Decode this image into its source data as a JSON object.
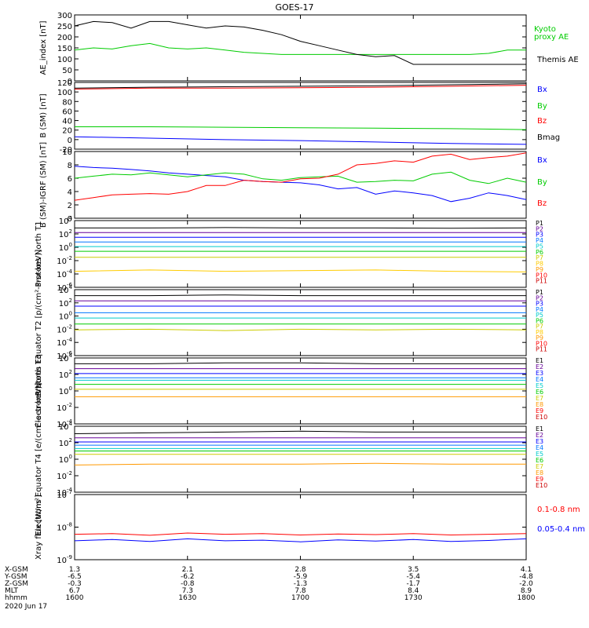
{
  "title": "GOES-17",
  "date_label": "2020 Jun 17",
  "orbit_rows": [
    {
      "label": "X-GSM",
      "values": [
        "1.3",
        "2.1",
        "2.8",
        "3.5",
        "4.1"
      ]
    },
    {
      "label": "Y-GSM",
      "values": [
        "-6.5",
        "-6.2",
        "-5.9",
        "-5.4",
        "-4.8"
      ]
    },
    {
      "label": "Z-GSM",
      "values": [
        "-0.3",
        "-0.8",
        "-1.3",
        "-1.7",
        "-2.0"
      ]
    },
    {
      "label": "MLT",
      "values": [
        "6.7",
        "7.3",
        "7.8",
        "8.4",
        "8.9"
      ]
    },
    {
      "label": "hhmm",
      "values": [
        "1600",
        "1630",
        "1700",
        "1730",
        "1800"
      ]
    }
  ],
  "chart_data": [
    {
      "type": "line",
      "ylabel": "AE_index [nT]",
      "ylim": [
        0,
        300
      ],
      "yscale": "linear",
      "tick_labels": [
        "0",
        "50",
        "100",
        "150",
        "200",
        "250",
        "300"
      ],
      "x": [
        0,
        5,
        10,
        15,
        20,
        25,
        30,
        35,
        40,
        45,
        50,
        55,
        60,
        65,
        70,
        75,
        80,
        85,
        90,
        95,
        100,
        105,
        110,
        115,
        120
      ],
      "series": [
        {
          "name": "Kyoto proxy AE",
          "color": "#00cc00",
          "values": [
            140,
            150,
            145,
            160,
            170,
            150,
            145,
            150,
            140,
            130,
            125,
            120,
            120,
            120,
            120,
            120,
            120,
            120,
            120,
            120,
            120,
            120,
            125,
            140,
            140
          ]
        },
        {
          "name": "Themis AE",
          "color": "#000000",
          "values": [
            250,
            270,
            265,
            240,
            270,
            270,
            255,
            240,
            250,
            245,
            230,
            210,
            180,
            160,
            140,
            120,
            110,
            115,
            75,
            75,
            75,
            75,
            75,
            75,
            75
          ]
        }
      ]
    },
    {
      "type": "line",
      "ylabel": "B (SM) [nT]",
      "ylim": [
        -20,
        120
      ],
      "yscale": "linear",
      "tick_labels": [
        "-20",
        "0",
        "20",
        "40",
        "60",
        "80",
        "100",
        "120"
      ],
      "x": [
        0,
        20,
        40,
        60,
        80,
        100,
        120
      ],
      "series": [
        {
          "name": "Bx",
          "color": "#0000ff",
          "values": [
            6,
            3,
            0,
            -2,
            -5,
            -8,
            -10
          ]
        },
        {
          "name": "By",
          "color": "#00cc00",
          "values": [
            27,
            27,
            26,
            25,
            24,
            23,
            21
          ]
        },
        {
          "name": "Bz",
          "color": "#ff0000",
          "values": [
            106,
            108,
            108,
            109,
            110,
            112,
            114
          ]
        },
        {
          "name": "Bmag",
          "color": "#000000",
          "values": [
            108,
            110,
            111,
            112,
            113,
            115,
            117
          ]
        }
      ]
    },
    {
      "type": "line",
      "ylabel": "B (SM)-IGRF (SM) [nT]",
      "ylim": [
        0,
        10
      ],
      "yscale": "linear",
      "tick_labels": [
        "0",
        "2",
        "4",
        "6",
        "8",
        "10"
      ],
      "x": [
        0,
        5,
        10,
        15,
        20,
        25,
        30,
        35,
        40,
        45,
        50,
        55,
        60,
        65,
        70,
        75,
        80,
        85,
        90,
        95,
        100,
        105,
        110,
        115,
        120
      ],
      "series": [
        {
          "name": "Bx",
          "color": "#0000ff",
          "values": [
            7.8,
            7.6,
            7.5,
            7.3,
            7.1,
            6.8,
            6.6,
            6.4,
            6.2,
            5.7,
            5.5,
            5.4,
            5.3,
            5.0,
            4.4,
            4.6,
            3.6,
            4.1,
            3.8,
            3.4,
            2.5,
            3.0,
            3.8,
            3.4,
            2.8
          ]
        },
        {
          "name": "By",
          "color": "#00cc00",
          "values": [
            6.0,
            6.3,
            6.6,
            6.5,
            6.8,
            6.5,
            6.2,
            6.5,
            6.8,
            6.6,
            5.9,
            5.7,
            6.1,
            6.2,
            6.3,
            5.4,
            5.5,
            5.7,
            5.6,
            6.6,
            6.9,
            5.7,
            5.2,
            6.0,
            5.4
          ]
        },
        {
          "name": "Bz",
          "color": "#ff0000",
          "values": [
            2.7,
            3.1,
            3.5,
            3.6,
            3.7,
            3.6,
            4.0,
            4.9,
            4.9,
            5.7,
            5.5,
            5.4,
            5.9,
            6.0,
            6.6,
            8.0,
            8.2,
            8.6,
            8.4,
            9.3,
            9.6,
            8.8,
            9.1,
            9.3,
            9.8
          ]
        }
      ]
    },
    {
      "type": "line",
      "ylabel": "Protons North T1",
      "ylim": [
        -6,
        4
      ],
      "yscale": "log",
      "tick_labels": [
        "10-6",
        "10-4",
        "10-2",
        "100",
        "102",
        "104"
      ],
      "x": [
        0,
        20,
        40,
        60,
        80,
        100,
        120
      ],
      "series": [
        {
          "name": "P1",
          "color": "#000000",
          "values": [
            2.9,
            2.9,
            2.95,
            2.9,
            2.9,
            2.85,
            2.9
          ]
        },
        {
          "name": "P2",
          "color": "#660099",
          "values": [
            2.2,
            2.2,
            2.2,
            2.2,
            2.2,
            2.2,
            2.2
          ]
        },
        {
          "name": "P3",
          "color": "#0000ff",
          "values": [
            1.5,
            1.5,
            1.5,
            1.5,
            1.5,
            1.5,
            1.5
          ]
        },
        {
          "name": "P4",
          "color": "#0077ff",
          "values": [
            0.8,
            0.8,
            0.8,
            0.8,
            0.8,
            0.8,
            0.8
          ]
        },
        {
          "name": "P5",
          "color": "#00cccc",
          "values": [
            0.1,
            0.1,
            0.1,
            0.1,
            0.1,
            0.1,
            0.1
          ]
        },
        {
          "name": "P6",
          "color": "#00cc00",
          "values": [
            -0.6,
            -0.6,
            -0.6,
            -0.6,
            -0.6,
            -0.6,
            -0.6
          ]
        },
        {
          "name": "P7",
          "color": "#cccc00",
          "values": [
            -1.5,
            -1.5,
            -1.5,
            -1.5,
            -1.5,
            -1.5,
            -1.5
          ]
        },
        {
          "name": "P8",
          "color": "#ffcc00",
          "values": [
            -3.6,
            -3.4,
            -3.6,
            -3.5,
            -3.4,
            -3.6,
            -3.7
          ]
        }
      ],
      "series_labels": [
        "P1",
        "P2",
        "P3",
        "P4",
        "P5",
        "P6",
        "P7",
        "P8",
        "P9",
        "P10",
        "P11"
      ],
      "label_colors": [
        "#000000",
        "#660099",
        "#0000ff",
        "#0077ff",
        "#00cccc",
        "#00cc00",
        "#cccc00",
        "#ffcc00",
        "#ff9900",
        "#ff0000",
        "#cc0000"
      ]
    },
    {
      "type": "line",
      "ylabel": "Protons Equator T2 [p/(cm²-s-sr-keV)]",
      "ylim": [
        -6,
        4
      ],
      "yscale": "log",
      "tick_labels": [
        "10-6",
        "10-4",
        "10-2",
        "100",
        "102",
        "104"
      ],
      "x": [
        0,
        20,
        40,
        60,
        80,
        100,
        120
      ],
      "series": [
        {
          "name": "P1",
          "color": "#000000",
          "values": [
            3.1,
            3.1,
            3.2,
            3.1,
            3.1,
            3.1,
            3.1
          ]
        },
        {
          "name": "P2",
          "color": "#660099",
          "values": [
            2.3,
            2.3,
            2.3,
            2.3,
            2.3,
            2.3,
            2.3
          ]
        },
        {
          "name": "P3",
          "color": "#0000ff",
          "values": [
            1.5,
            1.5,
            1.5,
            1.5,
            1.5,
            1.5,
            1.5
          ]
        },
        {
          "name": "P4",
          "color": "#0077ff",
          "values": [
            0.5,
            0.5,
            0.5,
            0.5,
            0.5,
            0.5,
            0.5
          ]
        },
        {
          "name": "P5",
          "color": "#00cccc",
          "values": [
            -0.3,
            -0.3,
            -0.3,
            -0.3,
            -0.3,
            -0.3,
            -0.3
          ]
        },
        {
          "name": "P6",
          "color": "#00cc00",
          "values": [
            -1.2,
            -1.2,
            -1.2,
            -1.2,
            -1.2,
            -1.2,
            -1.2
          ]
        },
        {
          "name": "P7",
          "color": "#cccc00",
          "values": [
            -2.1,
            -2.0,
            -2.2,
            -2.0,
            -2.1,
            -2.0,
            -2.1
          ]
        }
      ],
      "series_labels": [
        "P1",
        "P2",
        "P3",
        "P4",
        "P5",
        "P6",
        "P7",
        "P8",
        "P9",
        "P10",
        "P11"
      ],
      "label_colors": [
        "#000000",
        "#660099",
        "#0000ff",
        "#0077ff",
        "#00cccc",
        "#00cc00",
        "#cccc00",
        "#ffcc00",
        "#ff9900",
        "#ff0000",
        "#cc0000"
      ]
    },
    {
      "type": "line",
      "ylabel": "Electrons North T3",
      "ylim": [
        -4,
        4
      ],
      "yscale": "log",
      "tick_labels": [
        "10-4",
        "10-2",
        "100",
        "102",
        "104"
      ],
      "x": [
        0,
        20,
        40,
        60,
        80,
        100,
        120
      ],
      "series": [
        {
          "name": "E1",
          "color": "#000000",
          "values": [
            3.3,
            3.3,
            3.4,
            3.4,
            3.3,
            3.3,
            3.3
          ]
        },
        {
          "name": "E2",
          "color": "#660099",
          "values": [
            2.7,
            2.7,
            2.7,
            2.7,
            2.7,
            2.7,
            2.7
          ]
        },
        {
          "name": "E3",
          "color": "#0000ff",
          "values": [
            2.1,
            2.1,
            2.1,
            2.1,
            2.1,
            2.1,
            2.1
          ]
        },
        {
          "name": "E4",
          "color": "#0077ff",
          "values": [
            1.6,
            1.6,
            1.6,
            1.6,
            1.6,
            1.6,
            1.6
          ]
        },
        {
          "name": "E5",
          "color": "#00cccc",
          "values": [
            1.3,
            1.3,
            1.3,
            1.3,
            1.3,
            1.3,
            1.3
          ]
        },
        {
          "name": "E6",
          "color": "#00cc00",
          "values": [
            0.8,
            0.8,
            0.8,
            0.8,
            0.8,
            0.8,
            0.8
          ]
        },
        {
          "name": "E7",
          "color": "#cccc00",
          "values": [
            0.2,
            0.2,
            0.2,
            0.2,
            0.2,
            0.2,
            0.2
          ]
        },
        {
          "name": "E8",
          "color": "#ff9900",
          "values": [
            -0.7,
            -0.7,
            -0.7,
            -0.7,
            -0.7,
            -0.7,
            -0.7
          ]
        }
      ],
      "series_labels": [
        "E1",
        "E2",
        "E3",
        "E4",
        "E5",
        "E6",
        "E7",
        "E8",
        "E9",
        "E10"
      ],
      "label_colors": [
        "#000000",
        "#660099",
        "#0000ff",
        "#0077ff",
        "#00cccc",
        "#00cc00",
        "#cccc00",
        "#ff9900",
        "#ff0000",
        "#cc0000"
      ]
    },
    {
      "type": "line",
      "ylabel": "Electrons Equator T4 [e/(cm²-s-sr-keV)]",
      "ylim": [
        -4,
        4
      ],
      "yscale": "log",
      "tick_labels": [
        "10-4",
        "10-2",
        "100",
        "102",
        "104"
      ],
      "x": [
        0,
        20,
        40,
        60,
        80,
        100,
        120
      ],
      "series": [
        {
          "name": "E1",
          "color": "#000000",
          "values": [
            3.1,
            3.2,
            3.3,
            3.4,
            3.3,
            3.3,
            3.3
          ]
        },
        {
          "name": "E2",
          "color": "#660099",
          "values": [
            2.6,
            2.6,
            2.6,
            2.6,
            2.6,
            2.6,
            2.6
          ]
        },
        {
          "name": "E3",
          "color": "#0000ff",
          "values": [
            2.1,
            2.1,
            2.1,
            2.1,
            2.1,
            2.1,
            2.1
          ]
        },
        {
          "name": "E4",
          "color": "#0077ff",
          "values": [
            1.7,
            1.7,
            1.7,
            1.7,
            1.7,
            1.7,
            1.7
          ]
        },
        {
          "name": "E5",
          "color": "#00cccc",
          "values": [
            1.3,
            1.3,
            1.3,
            1.3,
            1.3,
            1.3,
            1.3
          ]
        },
        {
          "name": "E6",
          "color": "#00cc00",
          "values": [
            1.0,
            1.0,
            1.0,
            1.0,
            1.0,
            1.0,
            1.0
          ]
        },
        {
          "name": "E7",
          "color": "#cccc00",
          "values": [
            0.6,
            0.6,
            0.6,
            0.6,
            0.6,
            0.6,
            0.6
          ]
        },
        {
          "name": "E8",
          "color": "#ff9900",
          "values": [
            -0.7,
            -0.6,
            -0.6,
            -0.6,
            -0.5,
            -0.6,
            -0.6
          ]
        }
      ],
      "series_labels": [
        "E1",
        "E2",
        "E3",
        "E4",
        "E5",
        "E6",
        "E7",
        "E8",
        "E9",
        "E10"
      ],
      "label_colors": [
        "#000000",
        "#660099",
        "#0000ff",
        "#0077ff",
        "#00cccc",
        "#00cc00",
        "#cccc00",
        "#ff9900",
        "#ff0000",
        "#cc0000"
      ]
    },
    {
      "type": "line",
      "ylabel": "Xray flux [W/m²]",
      "ylim": [
        -9,
        -7
      ],
      "yscale": "log",
      "tick_labels": [
        "10-9",
        "10-8",
        "10-7"
      ],
      "x": [
        0,
        10,
        20,
        30,
        40,
        50,
        60,
        70,
        80,
        90,
        100,
        110,
        120
      ],
      "series": [
        {
          "name": "0.1-0.8 nm",
          "color": "#ff0000",
          "values": [
            -8.22,
            -8.2,
            -8.25,
            -8.18,
            -8.22,
            -8.2,
            -8.24,
            -8.21,
            -8.23,
            -8.2,
            -8.24,
            -8.22,
            -8.2
          ]
        },
        {
          "name": "0.05-0.4 nm",
          "color": "#0000ff",
          "values": [
            -8.42,
            -8.38,
            -8.44,
            -8.36,
            -8.42,
            -8.4,
            -8.45,
            -8.39,
            -8.43,
            -8.38,
            -8.44,
            -8.41,
            -8.36
          ]
        }
      ]
    }
  ]
}
